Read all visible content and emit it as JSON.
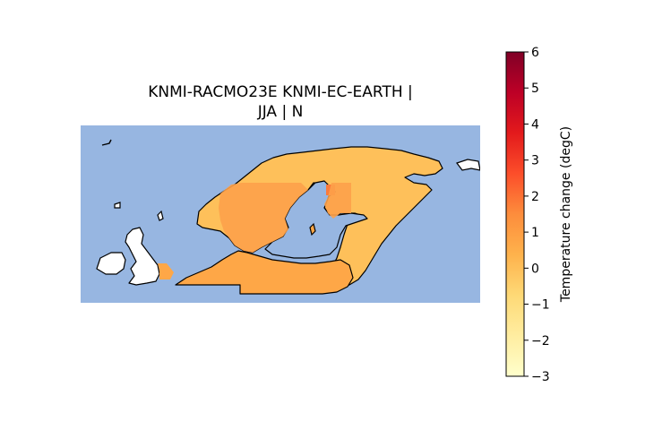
{
  "title": {
    "line1": "KNMI-RACMO23E KNMI-EC-EARTH |",
    "line2": "JJA | N"
  },
  "colors": {
    "ocean": "#97b6e1",
    "unmasked_land": "#ffffff",
    "coastline": "#000000",
    "colormap": [
      "#ffffcc",
      "#ffeda0",
      "#fed976",
      "#feb24c",
      "#fd8d3c",
      "#fc4e2a",
      "#e31a1c",
      "#bd0026",
      "#800026"
    ]
  },
  "chart_data": {
    "type": "heatmap",
    "region": "Northern Europe",
    "colormap_name": "YlOrRd",
    "colorbar": {
      "label": "Temperature change (degC)",
      "vmin": -3,
      "vmax": 6,
      "ticks": [
        {
          "value": 6,
          "label": "6"
        },
        {
          "value": 5,
          "label": "5"
        },
        {
          "value": 4,
          "label": "4"
        },
        {
          "value": 3,
          "label": "3"
        },
        {
          "value": 2,
          "label": "2"
        },
        {
          "value": 1,
          "label": "1"
        },
        {
          "value": 0,
          "label": "0"
        },
        {
          "value": -1,
          "label": "−1"
        },
        {
          "value": -2,
          "label": "−2"
        },
        {
          "value": -3,
          "label": "−3"
        }
      ]
    },
    "value_summary": {
      "typical_min": 0.4,
      "typical_max": 1.8,
      "max_cell": 2.2
    }
  }
}
